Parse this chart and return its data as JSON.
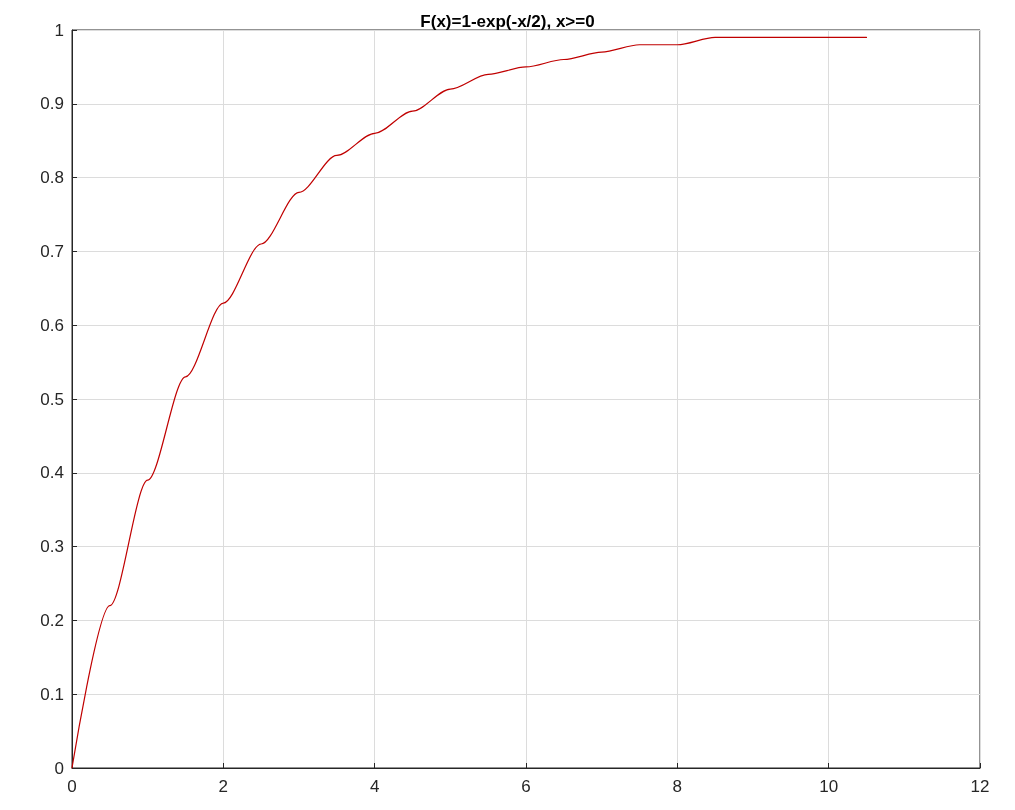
{
  "chart_data": {
    "type": "line",
    "title": "F(x)=1-exp(-x/2), x>=0",
    "x": [
      0,
      0.5,
      1,
      1.5,
      2,
      2.5,
      3,
      3.5,
      4,
      4.5,
      5,
      5.5,
      6,
      6.5,
      7,
      7.5,
      8,
      8.5,
      9,
      9.5,
      10,
      10.5
    ],
    "series": [
      {
        "color": "#c00000",
        "values": [
          0,
          0.22,
          0.39,
          0.53,
          0.63,
          0.71,
          0.78,
          0.83,
          0.86,
          0.89,
          0.92,
          0.94,
          0.95,
          0.96,
          0.97,
          0.98,
          0.98,
          0.99,
          0.99,
          0.99,
          0.99,
          0.99
        ]
      }
    ],
    "xlim": [
      0,
      12
    ],
    "xticks": [
      0,
      2,
      4,
      6,
      8,
      10,
      12
    ],
    "ylim": [
      0,
      1
    ],
    "yticks": [
      0,
      0.1,
      0.2,
      0.3,
      0.4,
      0.5,
      0.6,
      0.7,
      0.8,
      0.9,
      1
    ],
    "grid": true,
    "marker": "none",
    "line_style": "solid"
  }
}
